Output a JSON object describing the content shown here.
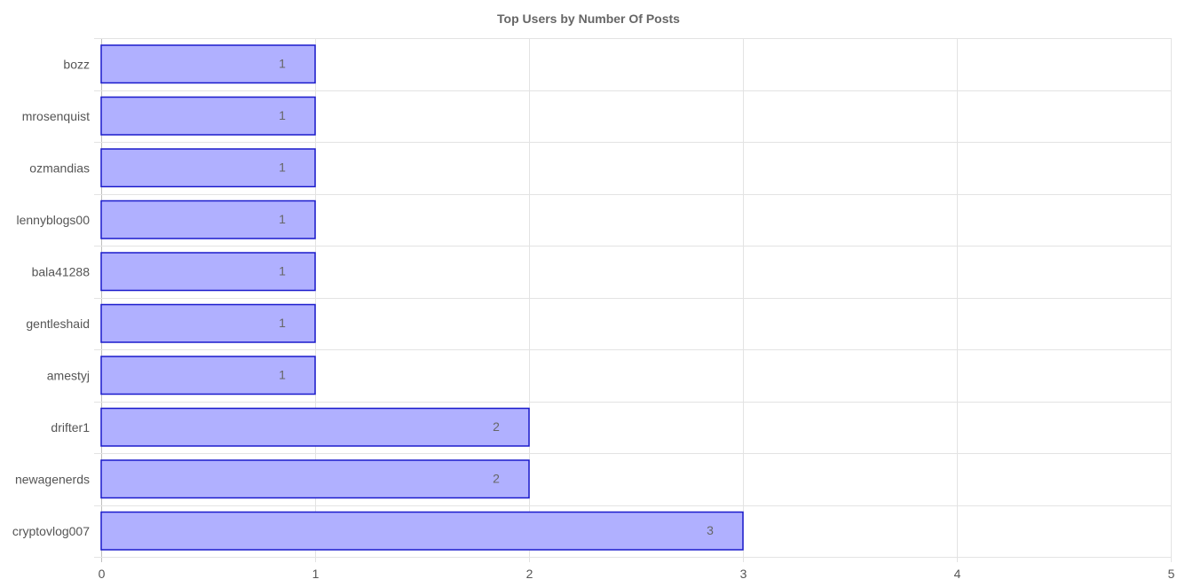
{
  "chart_data": {
    "type": "bar",
    "orientation": "horizontal",
    "title": "Top Users by Number Of Posts",
    "categories": [
      "bozz",
      "mrosenquist",
      "ozmandias",
      "lennyblogs00",
      "bala41288",
      "gentleshaid",
      "amestyj",
      "drifter1",
      "newagenerds",
      "cryptovlog007"
    ],
    "values": [
      1,
      1,
      1,
      1,
      1,
      1,
      1,
      2,
      2,
      3
    ],
    "xlabel": "",
    "ylabel": "",
    "xlim": [
      0,
      5
    ],
    "x_ticks": [
      0,
      1,
      2,
      3,
      4,
      5
    ],
    "grid": true,
    "colors": {
      "bar_fill": "#b0b0ff",
      "bar_stroke": "#1a1acc"
    }
  }
}
